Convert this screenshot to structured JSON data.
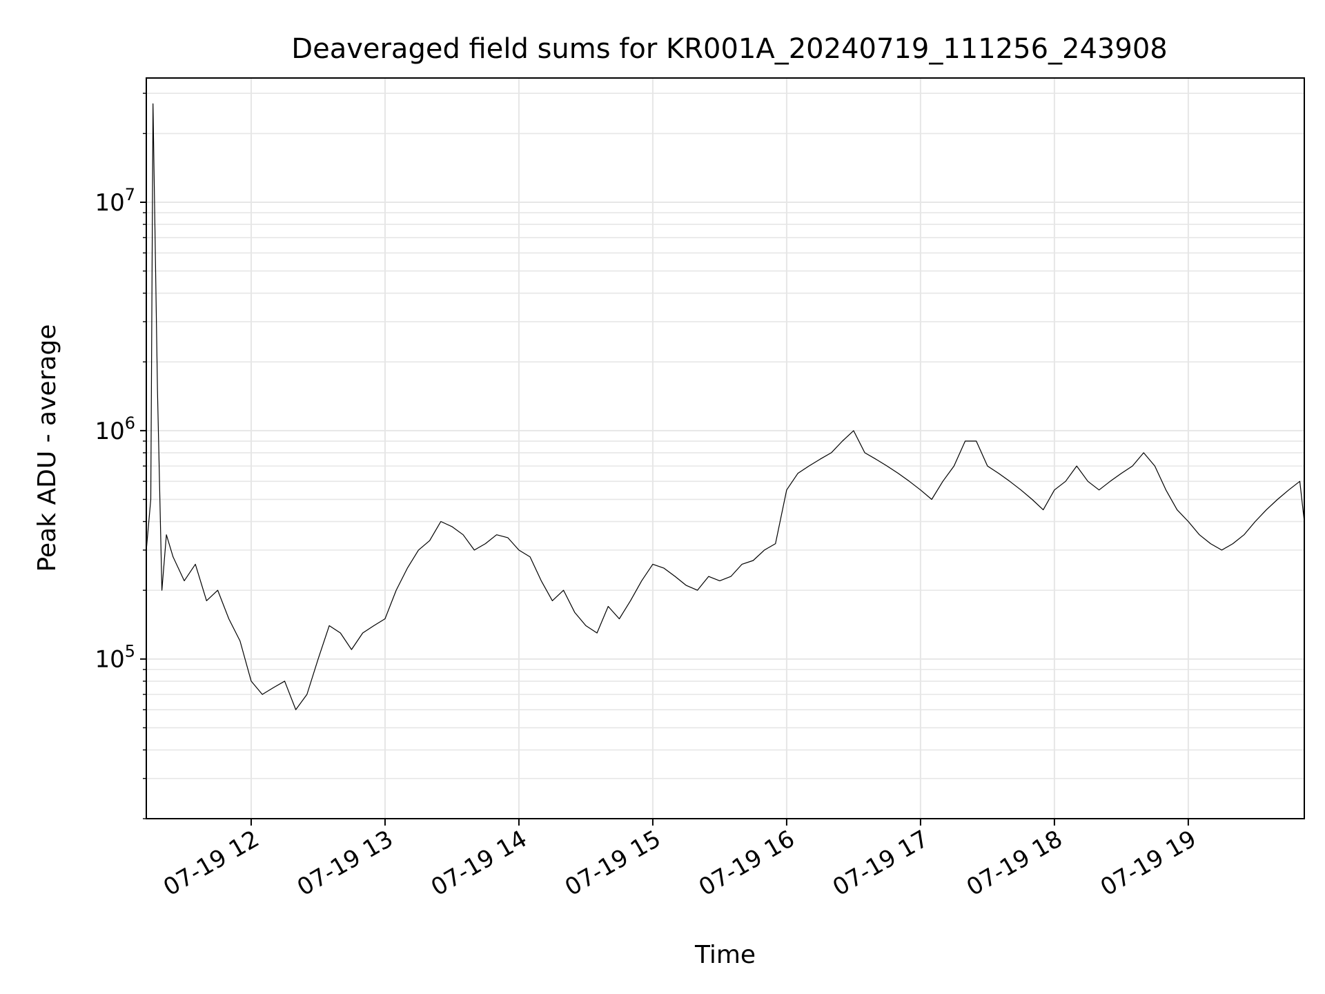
{
  "chart_data": {
    "type": "line",
    "title": "Deaveraged field sums for KR001A_20240719_111256_243908",
    "xlabel": "Time",
    "ylabel": "Peak ADU - average",
    "yscale": "log",
    "grid": true,
    "xlim": [
      "2024-07-19 11:13",
      "2024-07-19 19:52"
    ],
    "ylim": [
      20000,
      35000000
    ],
    "x_ticks": [
      {
        "value": "2024-07-19 12:00",
        "label": "07-19 12"
      },
      {
        "value": "2024-07-19 13:00",
        "label": "07-19 13"
      },
      {
        "value": "2024-07-19 14:00",
        "label": "07-19 14"
      },
      {
        "value": "2024-07-19 15:00",
        "label": "07-19 15"
      },
      {
        "value": "2024-07-19 16:00",
        "label": "07-19 16"
      },
      {
        "value": "2024-07-19 17:00",
        "label": "07-19 17"
      },
      {
        "value": "2024-07-19 18:00",
        "label": "07-19 18"
      },
      {
        "value": "2024-07-19 19:00",
        "label": "07-19 19"
      }
    ],
    "y_ticks": [
      {
        "value": 100000,
        "base": "10",
        "exponent": "5"
      },
      {
        "value": 1000000,
        "base": "10",
        "exponent": "6"
      },
      {
        "value": 10000000,
        "base": "10",
        "exponent": "7"
      }
    ],
    "series": [
      {
        "color": "#000000",
        "x": [
          "2024-07-19 11:13",
          "2024-07-19 11:15",
          "2024-07-19 11:16",
          "2024-07-19 11:18",
          "2024-07-19 11:20",
          "2024-07-19 11:22",
          "2024-07-19 11:25",
          "2024-07-19 11:30",
          "2024-07-19 11:35",
          "2024-07-19 11:40",
          "2024-07-19 11:45",
          "2024-07-19 11:50",
          "2024-07-19 11:55",
          "2024-07-19 12:00",
          "2024-07-19 12:05",
          "2024-07-19 12:10",
          "2024-07-19 12:15",
          "2024-07-19 12:20",
          "2024-07-19 12:25",
          "2024-07-19 12:30",
          "2024-07-19 12:35",
          "2024-07-19 12:40",
          "2024-07-19 12:45",
          "2024-07-19 12:50",
          "2024-07-19 12:55",
          "2024-07-19 13:00",
          "2024-07-19 13:05",
          "2024-07-19 13:10",
          "2024-07-19 13:15",
          "2024-07-19 13:20",
          "2024-07-19 13:25",
          "2024-07-19 13:30",
          "2024-07-19 13:35",
          "2024-07-19 13:40",
          "2024-07-19 13:45",
          "2024-07-19 13:50",
          "2024-07-19 13:55",
          "2024-07-19 14:00",
          "2024-07-19 14:05",
          "2024-07-19 14:10",
          "2024-07-19 14:15",
          "2024-07-19 14:20",
          "2024-07-19 14:25",
          "2024-07-19 14:30",
          "2024-07-19 14:35",
          "2024-07-19 14:40",
          "2024-07-19 14:45",
          "2024-07-19 14:50",
          "2024-07-19 14:55",
          "2024-07-19 15:00",
          "2024-07-19 15:05",
          "2024-07-19 15:10",
          "2024-07-19 15:15",
          "2024-07-19 15:20",
          "2024-07-19 15:25",
          "2024-07-19 15:30",
          "2024-07-19 15:35",
          "2024-07-19 15:40",
          "2024-07-19 15:45",
          "2024-07-19 15:50",
          "2024-07-19 15:55",
          "2024-07-19 16:00",
          "2024-07-19 16:05",
          "2024-07-19 16:10",
          "2024-07-19 16:15",
          "2024-07-19 16:20",
          "2024-07-19 16:25",
          "2024-07-19 16:30",
          "2024-07-19 16:35",
          "2024-07-19 16:40",
          "2024-07-19 16:45",
          "2024-07-19 16:50",
          "2024-07-19 16:55",
          "2024-07-19 17:00",
          "2024-07-19 17:05",
          "2024-07-19 17:10",
          "2024-07-19 17:15",
          "2024-07-19 17:20",
          "2024-07-19 17:25",
          "2024-07-19 17:30",
          "2024-07-19 17:35",
          "2024-07-19 17:40",
          "2024-07-19 17:45",
          "2024-07-19 17:50",
          "2024-07-19 17:55",
          "2024-07-19 18:00",
          "2024-07-19 18:05",
          "2024-07-19 18:10",
          "2024-07-19 18:15",
          "2024-07-19 18:20",
          "2024-07-19 18:25",
          "2024-07-19 18:30",
          "2024-07-19 18:35",
          "2024-07-19 18:40",
          "2024-07-19 18:45",
          "2024-07-19 18:50",
          "2024-07-19 18:55",
          "2024-07-19 19:00",
          "2024-07-19 19:05",
          "2024-07-19 19:10",
          "2024-07-19 19:15",
          "2024-07-19 19:20",
          "2024-07-19 19:25",
          "2024-07-19 19:30",
          "2024-07-19 19:35",
          "2024-07-19 19:40",
          "2024-07-19 19:45",
          "2024-07-19 19:50",
          "2024-07-19 19:52"
        ],
        "y": [
          300000,
          500000,
          27000000,
          1500000,
          200000,
          350000,
          280000,
          220000,
          260000,
          180000,
          200000,
          150000,
          120000,
          80000,
          70000,
          75000,
          80000,
          60000,
          70000,
          100000,
          140000,
          130000,
          110000,
          130000,
          140000,
          150000,
          200000,
          250000,
          300000,
          330000,
          400000,
          380000,
          350000,
          300000,
          320000,
          350000,
          340000,
          300000,
          280000,
          220000,
          180000,
          200000,
          160000,
          140000,
          130000,
          170000,
          150000,
          180000,
          220000,
          260000,
          250000,
          230000,
          210000,
          200000,
          230000,
          220000,
          230000,
          260000,
          270000,
          300000,
          320000,
          550000,
          650000,
          700000,
          750000,
          800000,
          900000,
          1000000,
          800000,
          750000,
          700000,
          650000,
          600000,
          550000,
          500000,
          600000,
          700000,
          900000,
          900000,
          700000,
          650000,
          600000,
          550000,
          500000,
          450000,
          550000,
          600000,
          700000,
          600000,
          550000,
          600000,
          650000,
          700000,
          800000,
          700000,
          550000,
          450000,
          400000,
          350000,
          320000,
          300000,
          320000,
          350000,
          400000,
          450000,
          500000,
          550000,
          600000,
          400000
        ]
      }
    ]
  }
}
